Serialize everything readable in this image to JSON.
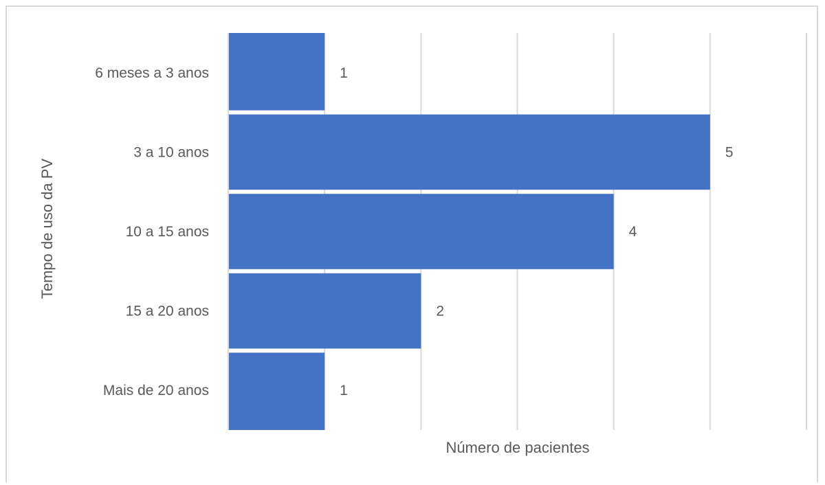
{
  "chart_data": {
    "type": "bar",
    "orientation": "horizontal",
    "categories": [
      "6 meses a 3 anos",
      "3 a 10 anos",
      "10 a 15 anos",
      "15 a 20 anos",
      "Mais de 20 anos"
    ],
    "values": [
      1,
      5,
      4,
      2,
      1
    ],
    "data_labels": [
      "1",
      "5",
      "4",
      "2",
      "1"
    ],
    "xlabel": "Número de pacientes",
    "ylabel": "Tempo de uso da PV",
    "xlim": [
      0,
      6
    ],
    "grid": true,
    "legend": "none",
    "bar_color": "#4472C4",
    "grid_color": "#d9d9d9",
    "text_color": "#595959"
  }
}
